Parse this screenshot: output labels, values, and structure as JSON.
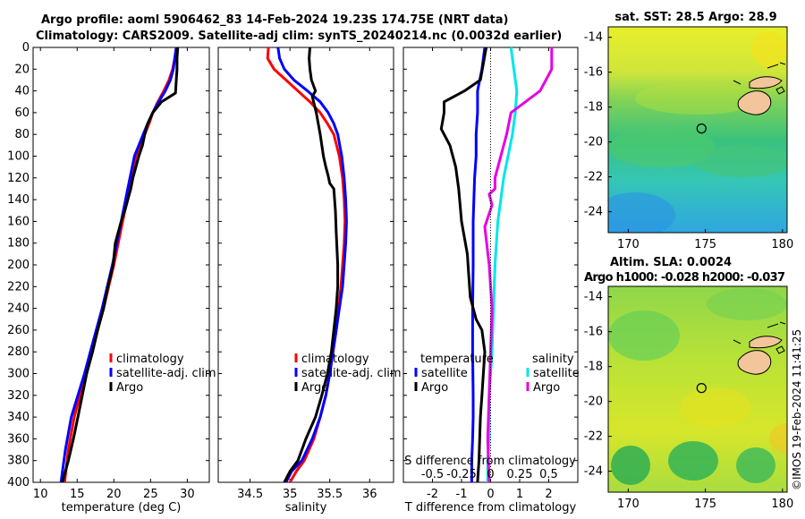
{
  "header": {
    "line1": "Argo profile: aoml 5906462_83 14-Feb-2024 19.23S 174.75E (NRT data)",
    "line2": "Climatology: CARS2009. Satellite-adj clim: synTS_20240214.nc (0.0032d earlier)"
  },
  "credit": "©IMOS 19-Feb-2024 11:41:25",
  "colors": {
    "climatology": "#ff0000",
    "satellite": "#0000ff",
    "argo": "#000000",
    "sal_satellite": "#00e6e6",
    "sal_argo": "#e600e6"
  },
  "chart_data": [
    {
      "type": "line",
      "name": "temperature",
      "xlabel": "temperature (deg C)",
      "xlim": [
        9,
        33
      ],
      "ylim": [
        0,
        400
      ],
      "xticks": [
        "10",
        "15",
        "20",
        "25",
        "30"
      ],
      "xtick_values": [
        10,
        15,
        20,
        25,
        30
      ],
      "yticks": [
        "0",
        "20",
        "40",
        "60",
        "80",
        "100",
        "120",
        "140",
        "160",
        "180",
        "200",
        "220",
        "240",
        "260",
        "280",
        "300",
        "320",
        "340",
        "360",
        "380",
        "400"
      ],
      "ytick_values": [
        0,
        20,
        40,
        60,
        80,
        100,
        120,
        140,
        160,
        180,
        200,
        220,
        240,
        260,
        280,
        300,
        320,
        340,
        360,
        380,
        400
      ],
      "legend": [
        "climatology",
        "satellite-adj. clim",
        "Argo"
      ],
      "series": [
        {
          "name": "climatology",
          "color": "#ff0000",
          "x": [
            28.5,
            28.3,
            28.0,
            27.5,
            26.8,
            26.0,
            25.3,
            24.8,
            24.2,
            23.6,
            23.0,
            22.4,
            21.8,
            21.2,
            20.6,
            20.0,
            19.3,
            18.6,
            17.8,
            17.0,
            16.2,
            15.4,
            14.6,
            13.8,
            13.3
          ],
          "y": [
            0,
            10,
            20,
            30,
            40,
            50,
            60,
            70,
            80,
            90,
            100,
            120,
            140,
            160,
            180,
            200,
            220,
            240,
            260,
            280,
            300,
            320,
            340,
            370,
            400
          ]
        },
        {
          "name": "satellite-adj. clim",
          "color": "#0000ff",
          "x": [
            28.5,
            28.3,
            28.1,
            27.7,
            27.0,
            26.1,
            25.3,
            24.6,
            24.0,
            23.4,
            22.8,
            22.2,
            21.6,
            21.0,
            20.4,
            19.8,
            19.1,
            18.4,
            17.6,
            16.8,
            16.0,
            15.1,
            14.2,
            13.4,
            12.8
          ],
          "y": [
            0,
            10,
            20,
            30,
            40,
            50,
            60,
            70,
            80,
            90,
            100,
            120,
            140,
            160,
            180,
            200,
            220,
            240,
            260,
            280,
            300,
            320,
            340,
            370,
            400
          ]
        },
        {
          "name": "Argo",
          "color": "#000000",
          "x": [
            28.7,
            28.6,
            28.6,
            28.5,
            28.4,
            26.5,
            25.3,
            24.6,
            24.2,
            23.9,
            23.4,
            23.0,
            22.6,
            22.3,
            21.9,
            21.5,
            21.0,
            20.6,
            20.2,
            19.9,
            19.2,
            18.6,
            17.8,
            17.1,
            16.3,
            15.7,
            15.1,
            14.5,
            13.8,
            13.4,
            13.0
          ],
          "y": [
            0,
            10,
            20,
            30,
            42,
            50,
            60,
            70,
            80,
            90,
            100,
            110,
            120,
            130,
            140,
            150,
            160,
            170,
            180,
            200,
            220,
            240,
            260,
            280,
            300,
            320,
            340,
            360,
            380,
            390,
            400
          ]
        }
      ]
    },
    {
      "type": "line",
      "name": "salinity",
      "xlabel": "salinity",
      "xlim": [
        34.1,
        36.3
      ],
      "ylim": [
        0,
        400
      ],
      "xticks": [
        "34.5",
        "35",
        "35.5",
        "36"
      ],
      "xtick_values": [
        34.5,
        35.0,
        35.5,
        36.0
      ],
      "legend": [
        "climatology",
        "satellite-adj. clim",
        "Argo"
      ],
      "series": [
        {
          "name": "climatology",
          "color": "#ff0000",
          "x": [
            34.73,
            34.72,
            34.8,
            34.95,
            35.1,
            35.25,
            35.38,
            35.47,
            35.55,
            35.62,
            35.66,
            35.68,
            35.69,
            35.68,
            35.66,
            35.64,
            35.61,
            35.58,
            35.54,
            35.5,
            35.45,
            35.38,
            35.3,
            35.18,
            35.08,
            35.0
          ],
          "y": [
            0,
            10,
            20,
            30,
            40,
            50,
            60,
            70,
            80,
            100,
            120,
            140,
            160,
            180,
            200,
            220,
            240,
            260,
            280,
            300,
            320,
            340,
            360,
            380,
            390,
            400
          ]
        },
        {
          "name": "satellite-adj. clim",
          "color": "#0000ff",
          "x": [
            34.85,
            34.87,
            34.93,
            35.05,
            35.22,
            35.38,
            35.48,
            35.55,
            35.6,
            35.65,
            35.68,
            35.7,
            35.71,
            35.7,
            35.68,
            35.66,
            35.62,
            35.58,
            35.54,
            35.5,
            35.45,
            35.38,
            35.28,
            35.15,
            35.02,
            34.95
          ],
          "y": [
            0,
            10,
            20,
            30,
            40,
            50,
            60,
            70,
            80,
            100,
            120,
            140,
            160,
            180,
            200,
            220,
            240,
            260,
            280,
            300,
            320,
            340,
            360,
            380,
            390,
            400
          ]
        },
        {
          "name": "Argo",
          "color": "#000000",
          "x": [
            35.25,
            35.24,
            35.25,
            35.27,
            35.32,
            35.28,
            35.33,
            35.38,
            35.42,
            35.45,
            35.48,
            35.5,
            35.55,
            35.57,
            35.58,
            35.6,
            35.6,
            35.58,
            35.55,
            35.52,
            35.47,
            35.4,
            35.32,
            35.2,
            35.1,
            35.0,
            34.93
          ],
          "y": [
            0,
            10,
            20,
            30,
            40,
            45,
            60,
            80,
            100,
            110,
            118,
            125,
            130,
            150,
            170,
            200,
            220,
            240,
            260,
            280,
            300,
            320,
            340,
            360,
            380,
            390,
            400
          ]
        }
      ]
    },
    {
      "type": "line",
      "name": "difference",
      "xlabel": "T difference from climatology",
      "top_label": "S difference from climatology",
      "xlim": [
        -3,
        3
      ],
      "ylim": [
        0,
        400
      ],
      "xticks": [
        "-2",
        "-1",
        "0",
        "1",
        "2"
      ],
      "xtick_values": [
        -2,
        -1,
        0,
        1,
        2
      ],
      "s_ticks": [
        "-0.5",
        "-0.25",
        "0",
        "0.25",
        "0.5"
      ],
      "s_tick_values": [
        -2,
        -1,
        0,
        1,
        2
      ],
      "legend_temperature": [
        "temperature",
        "satellite",
        "Argo"
      ],
      "legend_salinity": [
        "salinity",
        "satellite",
        "Argo"
      ],
      "series": [
        {
          "name": "T satellite",
          "color": "#0000ff",
          "x": [
            -0.2,
            -0.3,
            -0.45,
            -0.45,
            -0.5,
            -0.5,
            -0.55,
            -0.6,
            -0.6,
            -0.62,
            -0.62,
            -0.6,
            -0.6,
            -0.62,
            -0.65,
            -0.65
          ],
          "y": [
            0,
            20,
            40,
            60,
            80,
            100,
            120,
            160,
            200,
            240,
            280,
            320,
            340,
            360,
            380,
            400
          ]
        },
        {
          "name": "T Argo",
          "color": "#000000",
          "x": [
            -0.15,
            -0.35,
            -0.9,
            -1.6,
            -1.6,
            -1.7,
            -1.4,
            -1.2,
            -1.1,
            -1.0,
            -0.8,
            -0.75,
            -0.7,
            -0.5,
            -0.3,
            -0.2,
            -0.25,
            -0.3,
            -0.35,
            -0.4,
            -0.45
          ],
          "y": [
            0,
            30,
            40,
            50,
            60,
            75,
            90,
            110,
            130,
            160,
            190,
            210,
            230,
            250,
            260,
            280,
            300,
            320,
            340,
            380,
            400
          ]
        },
        {
          "name": "S satellite",
          "color": "#00e6e6",
          "x": [
            0.7,
            0.8,
            0.9,
            0.85,
            0.75,
            0.6,
            0.45,
            0.35,
            0.25,
            0.15,
            0.1,
            0.05,
            -0.05,
            -0.05,
            -0.1,
            -0.1
          ],
          "y": [
            0,
            20,
            40,
            60,
            80,
            100,
            120,
            140,
            160,
            200,
            240,
            280,
            320,
            360,
            380,
            400
          ]
        },
        {
          "name": "S Argo",
          "color": "#e600e6",
          "x": [
            2.1,
            2.1,
            1.7,
            0.7,
            0.55,
            0.35,
            0.15,
            0.15,
            -0.05,
            0.05,
            -0.2,
            -0.05,
            0.05,
            0.0,
            -0.05,
            -0.1,
            -0.05
          ],
          "y": [
            0,
            20,
            40,
            60,
            80,
            100,
            120,
            130,
            135,
            145,
            165,
            200,
            240,
            280,
            320,
            360,
            400
          ]
        }
      ]
    },
    {
      "type": "heatmap",
      "name": "sst_map",
      "title": "sat. SST: 28.5 Argo: 28.9",
      "xlim": [
        168.7,
        180.3
      ],
      "ylim": [
        -25.2,
        -13.4
      ],
      "xticks": [
        "170",
        "175",
        "180"
      ],
      "xtick_values": [
        170,
        175,
        180
      ],
      "yticks": [
        "-14",
        "-16",
        "-18",
        "-20",
        "-22",
        "-24"
      ],
      "ytick_values": [
        -14,
        -16,
        -18,
        -20,
        -22,
        -24
      ],
      "marker": {
        "lon": 174.75,
        "lat": -19.23
      }
    },
    {
      "type": "heatmap",
      "name": "sla_map",
      "title": "Altim. SLA: 0.0024",
      "subtitle": "Argo h1000: -0.028 h2000: -0.037",
      "xlim": [
        168.7,
        180.3
      ],
      "ylim": [
        -25.2,
        -13.4
      ],
      "xticks": [
        "170",
        "175",
        "180"
      ],
      "xtick_values": [
        170,
        175,
        180
      ],
      "yticks": [
        "-14",
        "-16",
        "-18",
        "-20",
        "-22",
        "-24"
      ],
      "ytick_values": [
        -14,
        -16,
        -18,
        -20,
        -22,
        -24
      ],
      "marker": {
        "lon": 174.75,
        "lat": -19.23
      }
    }
  ]
}
